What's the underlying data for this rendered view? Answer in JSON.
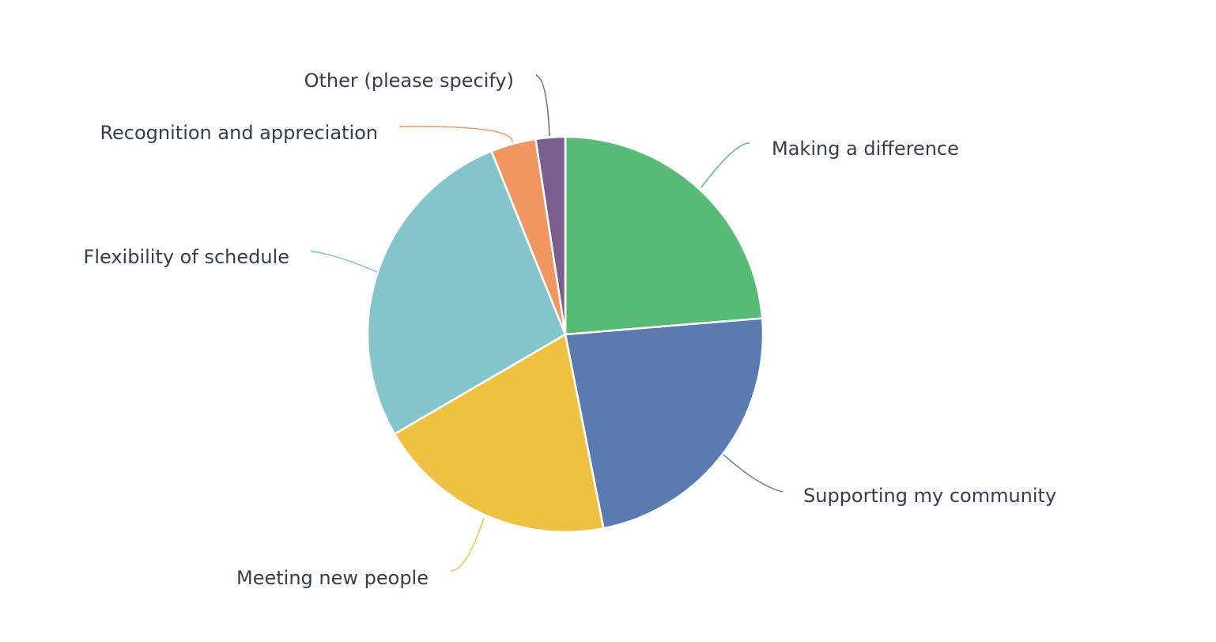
{
  "chart_data": {
    "type": "pie",
    "categories": [
      "Making a difference",
      "Supporting my community",
      "Meeting new people",
      "Flexibility of schedule",
      "Recognition and appreciation",
      "Other (please specify)"
    ],
    "values": [
      23.7,
      23.2,
      19.7,
      27.3,
      3.7,
      2.4
    ],
    "colors": [
      "#57bb77",
      "#5a7ab0",
      "#efc143",
      "#84c5cb",
      "#ef9661",
      "#7a5f8e"
    ]
  }
}
